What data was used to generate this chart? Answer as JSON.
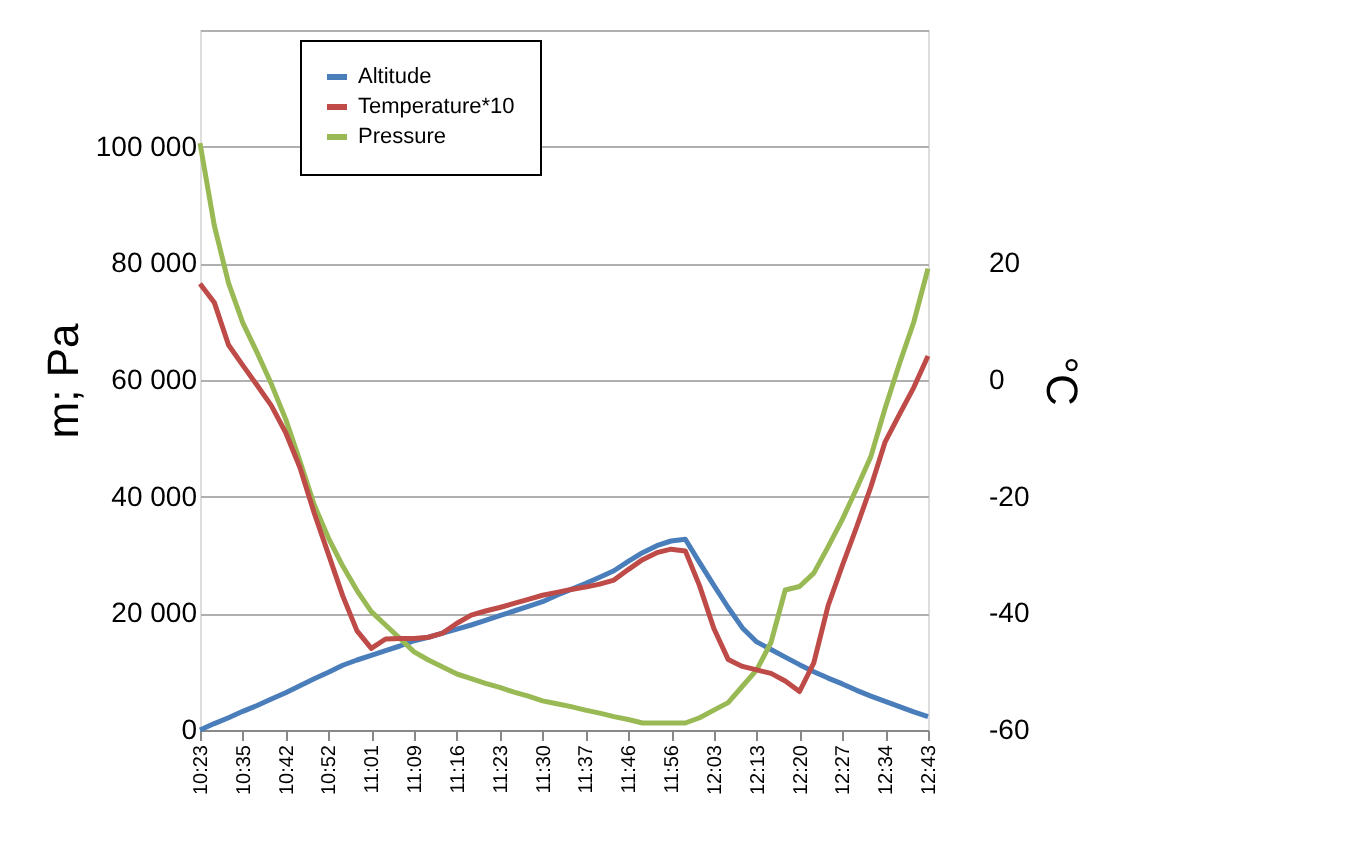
{
  "chart_data": {
    "type": "line",
    "categories": [
      "10:23",
      null,
      null,
      "10:35",
      null,
      null,
      "10:42",
      null,
      null,
      "10:52",
      null,
      null,
      "11:01",
      null,
      null,
      "11:09",
      null,
      null,
      "11:16",
      null,
      null,
      "11:23",
      null,
      null,
      "11:30",
      null,
      null,
      "11:37",
      null,
      null,
      "11:46",
      null,
      null,
      "11:56",
      null,
      null,
      "12:03",
      null,
      null,
      "12:13",
      null,
      null,
      "12:20",
      null,
      null,
      "12:27",
      null,
      null,
      "12:34",
      null,
      null,
      "12:43"
    ],
    "series": [
      {
        "name": "Altitude",
        "color": "#4a7ebb",
        "values": [
          0,
          1100,
          2100,
          3200,
          4200,
          5300,
          6400,
          7600,
          8800,
          9900,
          11100,
          12000,
          12800,
          13600,
          14400,
          15300,
          15900,
          16600,
          17300,
          18000,
          18800,
          19600,
          20400,
          21200,
          22000,
          23100,
          24100,
          25100,
          26200,
          27300,
          28900,
          30400,
          31600,
          32400,
          32700,
          28700,
          24800,
          21000,
          17500,
          15100,
          13800,
          12500,
          11200,
          10000,
          8900,
          7900,
          6800,
          5800,
          4900,
          4000,
          3100,
          2300
        ]
      },
      {
        "name": "Temperature*10",
        "color": "#be4b48",
        "axis": "y2",
        "values": [
          16.5,
          13.3,
          6.0,
          2.5,
          -0.9,
          -4.4,
          -9.0,
          -15.0,
          -22.8,
          -29.9,
          -37.0,
          -43.0,
          -46.0,
          -44.4,
          -44.3,
          -44.3,
          -44.1,
          -43.4,
          -41.7,
          -40.3,
          -39.6,
          -39.0,
          -38.3,
          -37.6,
          -36.9,
          -36.4,
          -35.9,
          -35.5,
          -35.0,
          -34.3,
          -32.5,
          -30.8,
          -29.6,
          -29.0,
          -29.3,
          -35.3,
          -42.6,
          -47.9,
          -49.1,
          -49.7,
          -50.3,
          -51.6,
          -53.4,
          -48.5,
          -38.7,
          -31.8,
          -25.2,
          -18.3,
          -10.6,
          -5.9,
          -1.3,
          4.1
        ]
      },
      {
        "name": "Pressure",
        "color": "#98b954",
        "values": [
          100600,
          86500,
          76600,
          69800,
          64700,
          59300,
          53300,
          46100,
          38600,
          32900,
          28100,
          23900,
          20300,
          18000,
          15700,
          13400,
          12000,
          10800,
          9600,
          8800,
          8000,
          7300,
          6500,
          5800,
          5000,
          4500,
          4000,
          3400,
          2900,
          2300,
          1800,
          1200,
          1200,
          1200,
          1200,
          2100,
          3400,
          4700,
          7500,
          10300,
          15000,
          24000,
          24600,
          26900,
          31400,
          36100,
          41400,
          46900,
          55200,
          62800,
          69900,
          79100
        ]
      }
    ],
    "ylabel": "m; Pa",
    "y2label": "°C",
    "ylim": [
      0,
      120000
    ],
    "yticks": [
      {
        "value": 0,
        "label": "0"
      },
      {
        "value": 20000,
        "label": "20 000"
      },
      {
        "value": 40000,
        "label": "40 000"
      },
      {
        "value": 60000,
        "label": "60 000"
      },
      {
        "value": 80000,
        "label": "80 000"
      },
      {
        "value": 100000,
        "label": "100 000"
      },
      {
        "value": 120000,
        "label": null
      }
    ],
    "y2lim": [
      -60,
      60
    ],
    "y2ticks": [
      -60,
      -40,
      -20,
      0,
      20
    ],
    "grid": "y",
    "legend": "top left",
    "line_style": "solid"
  }
}
